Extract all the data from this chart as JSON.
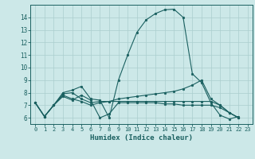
{
  "xlabel": "Humidex (Indice chaleur)",
  "bg_color": "#cce8e8",
  "line_color": "#1a6060",
  "grid_color": "#aacece",
  "xlim": [
    -0.5,
    23.5
  ],
  "ylim": [
    5.5,
    15.0
  ],
  "xticks": [
    0,
    1,
    2,
    3,
    4,
    5,
    6,
    7,
    8,
    9,
    10,
    11,
    12,
    13,
    14,
    15,
    16,
    17,
    18,
    19,
    20,
    21,
    22,
    23
  ],
  "yticks": [
    6,
    7,
    8,
    9,
    10,
    11,
    12,
    13,
    14
  ],
  "lines": [
    {
      "x": [
        0,
        1,
        2,
        3,
        4,
        5,
        6,
        7,
        8,
        9,
        10,
        11,
        12,
        13,
        14,
        15,
        16,
        17,
        18,
        19,
        20,
        21,
        22
      ],
      "y": [
        7.2,
        6.1,
        7.0,
        8.0,
        8.2,
        8.5,
        7.5,
        7.4,
        6.0,
        9.0,
        11.0,
        12.8,
        13.8,
        14.3,
        14.6,
        14.65,
        14.0,
        9.5,
        8.8,
        7.2,
        6.2,
        5.9,
        6.1
      ]
    },
    {
      "x": [
        0,
        1,
        2,
        3,
        4,
        5,
        6,
        7,
        8,
        9,
        10,
        11,
        12,
        13,
        14,
        15,
        16,
        17,
        18,
        19,
        20,
        21,
        22
      ],
      "y": [
        7.2,
        6.1,
        7.0,
        7.8,
        7.5,
        7.3,
        7.0,
        7.2,
        7.3,
        7.5,
        7.6,
        7.7,
        7.8,
        7.9,
        8.0,
        8.1,
        8.3,
        8.6,
        9.0,
        7.5,
        7.0,
        6.4,
        6.0
      ]
    },
    {
      "x": [
        0,
        1,
        2,
        3,
        4,
        5,
        6,
        7,
        8,
        9,
        10,
        11,
        12,
        13,
        14,
        15,
        16,
        17,
        18,
        19,
        20,
        21,
        22
      ],
      "y": [
        7.2,
        6.1,
        7.0,
        7.9,
        8.0,
        7.5,
        7.2,
        7.3,
        7.3,
        7.3,
        7.3,
        7.3,
        7.3,
        7.3,
        7.3,
        7.3,
        7.3,
        7.3,
        7.3,
        7.3,
        7.0,
        6.4,
        6.0
      ]
    },
    {
      "x": [
        0,
        1,
        2,
        3,
        4,
        5,
        6,
        7,
        8,
        9,
        10,
        11,
        12,
        13,
        14,
        15,
        16,
        17,
        18,
        19,
        20,
        21,
        22
      ],
      "y": [
        7.2,
        6.1,
        7.0,
        7.7,
        7.4,
        7.8,
        7.4,
        6.0,
        6.3,
        7.2,
        7.2,
        7.2,
        7.2,
        7.2,
        7.1,
        7.1,
        7.0,
        7.0,
        7.0,
        7.0,
        6.8,
        6.4,
        6.0
      ]
    }
  ]
}
